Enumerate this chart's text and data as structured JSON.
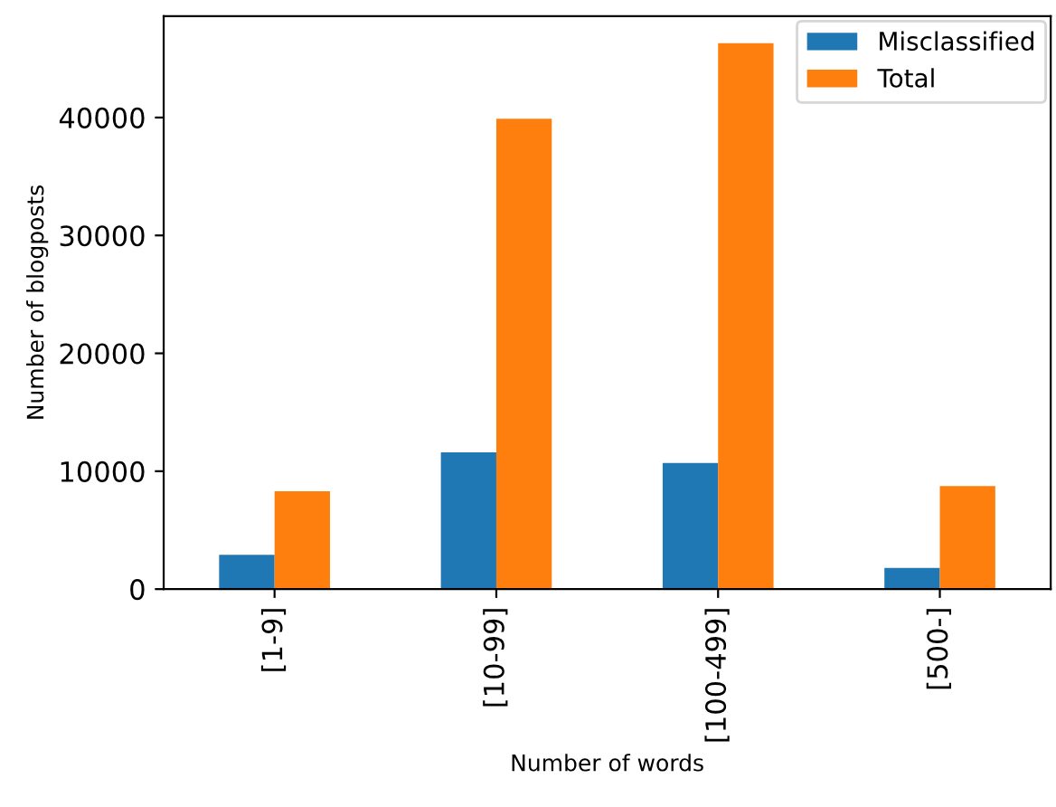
{
  "chart_data": {
    "type": "bar",
    "xlabel": "Number of words",
    "ylabel": "Number of blogposts",
    "categories": [
      "[1-9]",
      "[10-99]",
      "[100-499]",
      "[500-]"
    ],
    "series": [
      {
        "name": "Misclassified",
        "color": "#1f77b4",
        "values": [
          2900,
          11600,
          10700,
          1800
        ]
      },
      {
        "name": "Total",
        "color": "#ff7f0e",
        "values": [
          8300,
          39900,
          46300,
          8750
        ]
      }
    ],
    "ylim": [
      0,
      48600
    ],
    "yticks": [
      0,
      10000,
      20000,
      30000,
      40000
    ],
    "legend": "top right",
    "grid": false
  }
}
